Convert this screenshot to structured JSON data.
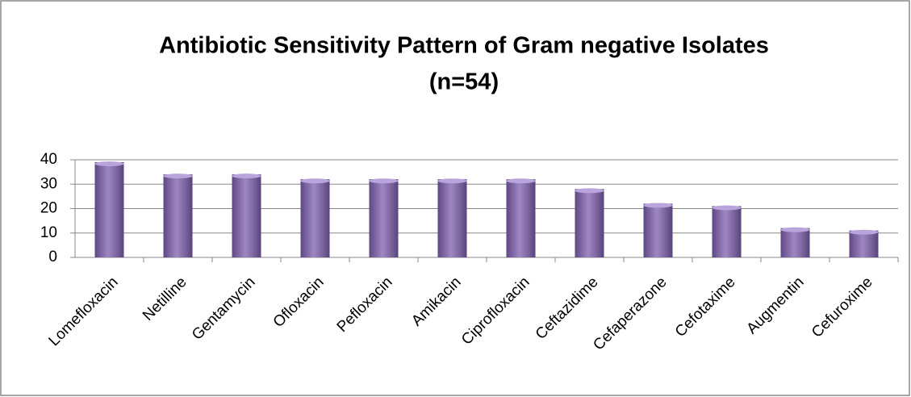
{
  "chart_data": {
    "type": "bar",
    "title": [
      "Antibiotic Sensitivity Pattern of Gram negative Isolates",
      "(n=54)"
    ],
    "categories": [
      "Lomefloxacin",
      "Netilline",
      "Gentamycin",
      "Ofloxacin",
      "Pefloxacin",
      "Amikacin",
      "Ciprofloxacin",
      "Ceftazidime",
      "Cefaperazone",
      "Cefotaxime",
      "Augmentin",
      "Cefuroxime"
    ],
    "values": [
      39,
      34,
      34,
      32,
      32,
      32,
      32,
      28,
      22,
      21,
      12,
      11
    ],
    "color": "#7e5fae",
    "ylim": [
      0,
      40
    ],
    "yticks": [
      0,
      10,
      20,
      30,
      40
    ],
    "grid": true
  }
}
